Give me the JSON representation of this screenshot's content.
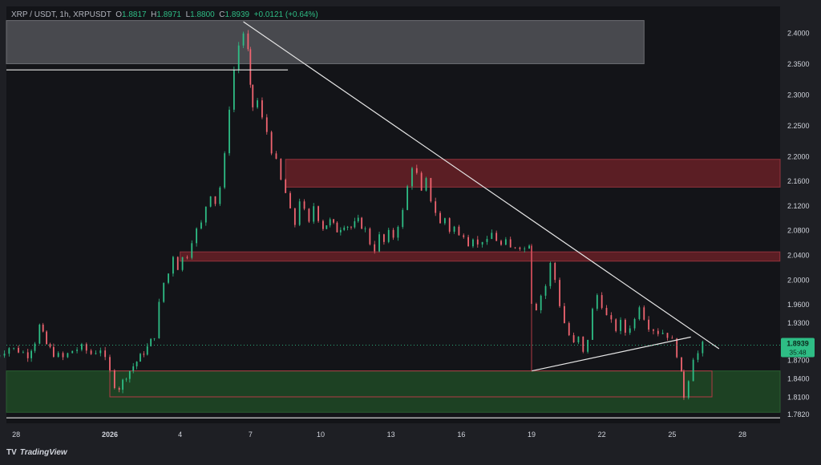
{
  "legend": {
    "symbol": "XRP / USDT, 1h, XRPUSDT",
    "o_label": "O",
    "o": "1.8817",
    "h_label": "H",
    "h": "1.8971",
    "l_label": "L",
    "l": "1.8800",
    "c_label": "C",
    "c": "1.8939",
    "change": "+0.0121 (+0.64%)"
  },
  "brand": {
    "logo": "TV",
    "name": "TradingView"
  },
  "colors": {
    "up": "#2ebd85",
    "down": "#f06470",
    "background": "#131418",
    "frame": "#1e1f24",
    "resistance_zone": "#6d2128",
    "support_zone": "#1f4a26",
    "supply_zone": "#5a5b61"
  },
  "chart_data": {
    "type": "candlestick",
    "y_ticks": [
      "2.4000",
      "2.3500",
      "2.3000",
      "2.2500",
      "2.2000",
      "2.1600",
      "2.1200",
      "2.0800",
      "2.0400",
      "2.0000",
      "1.9600",
      "1.9300",
      "1.9000",
      "1.8700",
      "1.8400",
      "1.8100",
      "1.7820"
    ],
    "y_tick_values": [
      2.4,
      2.35,
      2.3,
      2.25,
      2.2,
      2.16,
      2.12,
      2.08,
      2.04,
      2.0,
      1.96,
      1.93,
      1.9,
      1.87,
      1.84,
      1.81,
      1.782
    ],
    "x_ticks": [
      "28",
      "2026",
      "4",
      "7",
      "10",
      "13",
      "16",
      "19",
      "22",
      "25",
      "28"
    ],
    "x_tick_days": [
      -4,
      0,
      3,
      6,
      9,
      12,
      15,
      18,
      21,
      24,
      27
    ],
    "last_price": {
      "value": 1.8939,
      "label": "1.8939",
      "countdown": "35:48"
    },
    "price_path": [
      [
        -5.0,
        1.872
      ],
      [
        -4.7,
        1.88
      ],
      [
        -4.3,
        1.89
      ],
      [
        -3.9,
        1.885
      ],
      [
        -3.5,
        1.878
      ],
      [
        -3.2,
        1.9
      ],
      [
        -3.0,
        1.925
      ],
      [
        -2.7,
        1.895
      ],
      [
        -2.4,
        1.88
      ],
      [
        -2.0,
        1.873
      ],
      [
        -1.6,
        1.885
      ],
      [
        -1.2,
        1.89
      ],
      [
        -0.8,
        1.88
      ],
      [
        -0.4,
        1.888
      ],
      [
        0.0,
        1.85
      ],
      [
        0.2,
        1.83
      ],
      [
        0.4,
        1.825
      ],
      [
        0.7,
        1.845
      ],
      [
        1.0,
        1.86
      ],
      [
        1.3,
        1.875
      ],
      [
        1.6,
        1.89
      ],
      [
        1.9,
        1.91
      ],
      [
        2.1,
        1.96
      ],
      [
        2.3,
        1.995
      ],
      [
        2.5,
        2.01
      ],
      [
        2.7,
        2.04
      ],
      [
        2.9,
        2.02
      ],
      [
        3.1,
        2.035
      ],
      [
        3.3,
        2.04
      ],
      [
        3.5,
        2.065
      ],
      [
        3.7,
        2.08
      ],
      [
        3.9,
        2.09
      ],
      [
        4.1,
        2.12
      ],
      [
        4.3,
        2.14
      ],
      [
        4.5,
        2.125
      ],
      [
        4.7,
        2.15
      ],
      [
        4.9,
        2.2
      ],
      [
        5.1,
        2.28
      ],
      [
        5.3,
        2.34
      ],
      [
        5.5,
        2.38
      ],
      [
        5.7,
        2.4
      ],
      [
        5.9,
        2.37
      ],
      [
        6.0,
        2.31
      ],
      [
        6.1,
        2.28
      ],
      [
        6.3,
        2.29
      ],
      [
        6.5,
        2.26
      ],
      [
        6.7,
        2.24
      ],
      [
        6.9,
        2.21
      ],
      [
        7.1,
        2.19
      ],
      [
        7.3,
        2.16
      ],
      [
        7.5,
        2.14
      ],
      [
        7.7,
        2.11
      ],
      [
        7.9,
        2.09
      ],
      [
        8.1,
        2.13
      ],
      [
        8.3,
        2.11
      ],
      [
        8.5,
        2.09
      ],
      [
        8.7,
        2.12
      ],
      [
        8.9,
        2.1
      ],
      [
        9.1,
        2.085
      ],
      [
        9.4,
        2.095
      ],
      [
        9.7,
        2.08
      ],
      [
        10.0,
        2.09
      ],
      [
        10.3,
        2.085
      ],
      [
        10.6,
        2.095
      ],
      [
        10.9,
        2.08
      ],
      [
        11.1,
        2.06
      ],
      [
        11.3,
        2.05
      ],
      [
        11.5,
        2.07
      ],
      [
        11.7,
        2.06
      ],
      [
        11.9,
        2.075
      ],
      [
        12.1,
        2.07
      ],
      [
        12.3,
        2.09
      ],
      [
        12.5,
        2.11
      ],
      [
        12.7,
        2.15
      ],
      [
        12.9,
        2.185
      ],
      [
        13.1,
        2.17
      ],
      [
        13.3,
        2.14
      ],
      [
        13.5,
        2.16
      ],
      [
        13.7,
        2.13
      ],
      [
        13.9,
        2.11
      ],
      [
        14.1,
        2.09
      ],
      [
        14.3,
        2.1
      ],
      [
        14.5,
        2.08
      ],
      [
        14.7,
        2.085
      ],
      [
        14.9,
        2.07
      ],
      [
        15.1,
        2.075
      ],
      [
        15.3,
        2.06
      ],
      [
        15.5,
        2.07
      ],
      [
        15.7,
        2.055
      ],
      [
        15.9,
        2.065
      ],
      [
        16.1,
        2.06
      ],
      [
        16.3,
        2.075
      ],
      [
        16.5,
        2.065
      ],
      [
        16.7,
        2.055
      ],
      [
        16.9,
        2.06
      ],
      [
        17.1,
        2.05
      ],
      [
        17.3,
        2.055
      ],
      [
        17.5,
        2.055
      ],
      [
        17.7,
        2.05
      ],
      [
        17.9,
        2.06
      ],
      [
        18.0,
        1.965
      ],
      [
        18.2,
        1.955
      ],
      [
        18.4,
        1.975
      ],
      [
        18.6,
        1.99
      ],
      [
        18.8,
        2.025
      ],
      [
        19.0,
        2.0
      ],
      [
        19.2,
        1.96
      ],
      [
        19.4,
        1.93
      ],
      [
        19.6,
        1.91
      ],
      [
        19.8,
        1.895
      ],
      [
        20.0,
        1.905
      ],
      [
        20.2,
        1.88
      ],
      [
        20.4,
        1.905
      ],
      [
        20.6,
        1.95
      ],
      [
        20.8,
        1.975
      ],
      [
        21.0,
        1.96
      ],
      [
        21.2,
        1.94
      ],
      [
        21.4,
        1.93
      ],
      [
        21.6,
        1.92
      ],
      [
        21.8,
        1.93
      ],
      [
        22.0,
        1.915
      ],
      [
        22.2,
        1.925
      ],
      [
        22.4,
        1.935
      ],
      [
        22.6,
        1.96
      ],
      [
        22.8,
        1.94
      ],
      [
        23.0,
        1.925
      ],
      [
        23.2,
        1.92
      ],
      [
        23.4,
        1.915
      ],
      [
        23.6,
        1.915
      ],
      [
        23.8,
        1.91
      ],
      [
        24.0,
        1.9
      ],
      [
        24.2,
        1.88
      ],
      [
        24.4,
        1.845
      ],
      [
        24.5,
        1.812
      ],
      [
        24.7,
        1.84
      ],
      [
        24.9,
        1.875
      ],
      [
        25.1,
        1.88
      ],
      [
        25.3,
        1.894
      ]
    ],
    "zones": [
      {
        "kind": "supply",
        "x0": -5.0,
        "x1": 22.8,
        "y0": 2.35,
        "y1": 2.42
      },
      {
        "kind": "resistance",
        "x0": 7.5,
        "x1": 29.0,
        "y0": 2.15,
        "y1": 2.195
      },
      {
        "kind": "resistance",
        "x0": 3.0,
        "x1": 28.6,
        "y0": 2.03,
        "y1": 2.045
      },
      {
        "kind": "support",
        "x0": -5.0,
        "x1": 30.0,
        "y0": 1.785,
        "y1": 1.852
      },
      {
        "kind": "support-outline",
        "x0": 0.0,
        "x1": 25.7,
        "y0": 1.81,
        "y1": 1.852
      }
    ],
    "lines": [
      {
        "x0": -5.0,
        "y0": 2.34,
        "x1": 7.6,
        "y1": 2.34
      },
      {
        "x0": 5.7,
        "y0": 2.418,
        "x1": 26.0,
        "y1": 1.888
      },
      {
        "x0": 18.0,
        "y0": 1.852,
        "x1": 24.8,
        "y1": 1.907
      },
      {
        "x0": 18.0,
        "y0": 2.058,
        "x1": 18.0,
        "y1": 1.852
      },
      {
        "x0": -5.0,
        "y0": 1.776,
        "x1": 30.0,
        "y1": 1.776
      }
    ]
  }
}
